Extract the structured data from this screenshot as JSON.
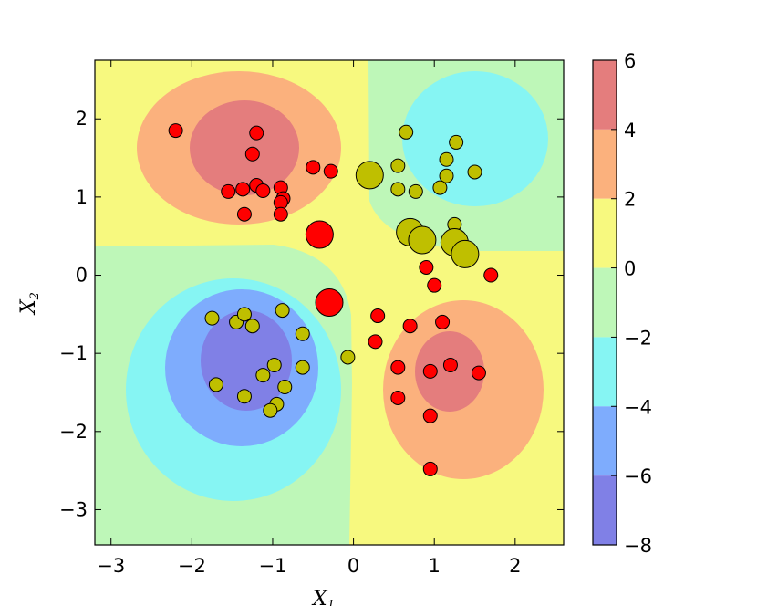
{
  "chart_data": {
    "type": "scatter",
    "title": "",
    "xlabel": "X",
    "xlabel_sub": "1",
    "ylabel": "X",
    "ylabel_sub": "2",
    "xlim": [
      -3.2,
      2.6
    ],
    "ylim": [
      -3.45,
      2.75
    ],
    "xticks": [
      -3,
      -2,
      -1,
      0,
      1,
      2
    ],
    "xtick_labels": [
      "−3",
      "−2",
      "−1",
      "0",
      "1",
      "2"
    ],
    "yticks": [
      -3,
      -2,
      -1,
      0,
      1,
      2
    ],
    "ytick_labels": [
      "−3",
      "−2",
      "−1",
      "0",
      "1",
      "2"
    ],
    "grid": false,
    "background": "filled contour plot of a decision function with four lobes (positive in upper-left and lower-right, negative in upper-right and lower-left)",
    "colorbar": {
      "ticks": [
        6,
        4,
        2,
        0,
        -2,
        -4,
        -6,
        -8
      ],
      "tick_labels": [
        "6",
        "4",
        "2",
        "0",
        "−2",
        "−4",
        "−6",
        "−8"
      ],
      "levels": [
        {
          "from": 4,
          "to": 6,
          "color": "#e47d7d"
        },
        {
          "from": 2,
          "to": 4,
          "color": "#fbb17d"
        },
        {
          "from": 0,
          "to": 2,
          "color": "#f7f97f"
        },
        {
          "from": -2,
          "to": 0,
          "color": "#bef7b8"
        },
        {
          "from": -4,
          "to": -2,
          "color": "#86f5f3"
        },
        {
          "from": -6,
          "to": -4,
          "color": "#7eacfd"
        },
        {
          "from": -8,
          "to": -6,
          "color": "#8080e6"
        }
      ]
    },
    "series": [
      {
        "color": "#ff0000",
        "points": [
          {
            "x": -2.2,
            "y": 1.85,
            "big": false
          },
          {
            "x": -1.2,
            "y": 1.82,
            "big": false
          },
          {
            "x": -1.25,
            "y": 1.55,
            "big": false
          },
          {
            "x": -1.55,
            "y": 1.07,
            "big": false
          },
          {
            "x": -1.37,
            "y": 1.1,
            "big": false
          },
          {
            "x": -1.2,
            "y": 1.15,
            "big": false
          },
          {
            "x": -1.12,
            "y": 1.08,
            "big": false
          },
          {
            "x": -0.9,
            "y": 1.12,
            "big": false
          },
          {
            "x": -0.87,
            "y": 0.98,
            "big": false
          },
          {
            "x": -0.9,
            "y": 0.93,
            "big": false
          },
          {
            "x": -1.35,
            "y": 0.78,
            "big": false
          },
          {
            "x": -0.9,
            "y": 0.78,
            "big": false
          },
          {
            "x": -0.5,
            "y": 1.38,
            "big": false
          },
          {
            "x": -0.28,
            "y": 1.33,
            "big": false
          },
          {
            "x": -0.42,
            "y": 0.52,
            "big": true
          },
          {
            "x": -0.3,
            "y": -0.35,
            "big": true
          },
          {
            "x": 0.9,
            "y": 0.1,
            "big": false
          },
          {
            "x": 1.0,
            "y": -0.13,
            "big": false
          },
          {
            "x": 1.7,
            "y": 0.0,
            "big": false
          },
          {
            "x": 0.3,
            "y": -0.52,
            "big": false
          },
          {
            "x": 0.7,
            "y": -0.65,
            "big": false
          },
          {
            "x": 1.1,
            "y": -0.6,
            "big": false
          },
          {
            "x": 0.27,
            "y": -0.85,
            "big": false
          },
          {
            "x": 0.55,
            "y": -1.18,
            "big": false
          },
          {
            "x": 0.95,
            "y": -1.23,
            "big": false
          },
          {
            "x": 1.2,
            "y": -1.15,
            "big": false
          },
          {
            "x": 1.55,
            "y": -1.25,
            "big": false
          },
          {
            "x": 0.55,
            "y": -1.57,
            "big": false
          },
          {
            "x": 0.95,
            "y": -1.8,
            "big": false
          },
          {
            "x": 0.95,
            "y": -2.48,
            "big": false
          }
        ]
      },
      {
        "color": "#bfbf00",
        "points": [
          {
            "x": 0.2,
            "y": 1.28,
            "big": true
          },
          {
            "x": 0.65,
            "y": 1.83,
            "big": false
          },
          {
            "x": 1.27,
            "y": 1.7,
            "big": false
          },
          {
            "x": 1.15,
            "y": 1.48,
            "big": false
          },
          {
            "x": 0.55,
            "y": 1.4,
            "big": false
          },
          {
            "x": 1.15,
            "y": 1.27,
            "big": false
          },
          {
            "x": 1.5,
            "y": 1.32,
            "big": false
          },
          {
            "x": 0.55,
            "y": 1.1,
            "big": false
          },
          {
            "x": 0.77,
            "y": 1.07,
            "big": false
          },
          {
            "x": 1.07,
            "y": 1.12,
            "big": false
          },
          {
            "x": 1.25,
            "y": 0.65,
            "big": false
          },
          {
            "x": 0.7,
            "y": 0.55,
            "big": true
          },
          {
            "x": 0.85,
            "y": 0.45,
            "big": true
          },
          {
            "x": 1.25,
            "y": 0.42,
            "big": true
          },
          {
            "x": 1.38,
            "y": 0.27,
            "big": true
          },
          {
            "x": -1.75,
            "y": -0.55,
            "big": false
          },
          {
            "x": -1.45,
            "y": -0.6,
            "big": false
          },
          {
            "x": -1.35,
            "y": -0.5,
            "big": false
          },
          {
            "x": -1.25,
            "y": -0.65,
            "big": false
          },
          {
            "x": -0.88,
            "y": -0.45,
            "big": false
          },
          {
            "x": -0.63,
            "y": -0.75,
            "big": false
          },
          {
            "x": -0.07,
            "y": -1.05,
            "big": false
          },
          {
            "x": -0.63,
            "y": -1.18,
            "big": false
          },
          {
            "x": -0.98,
            "y": -1.15,
            "big": false
          },
          {
            "x": -1.12,
            "y": -1.28,
            "big": false
          },
          {
            "x": -1.7,
            "y": -1.4,
            "big": false
          },
          {
            "x": -1.35,
            "y": -1.55,
            "big": false
          },
          {
            "x": -0.85,
            "y": -1.43,
            "big": false
          },
          {
            "x": -0.95,
            "y": -1.65,
            "big": false
          },
          {
            "x": -1.03,
            "y": -1.73,
            "big": false
          }
        ]
      }
    ]
  }
}
